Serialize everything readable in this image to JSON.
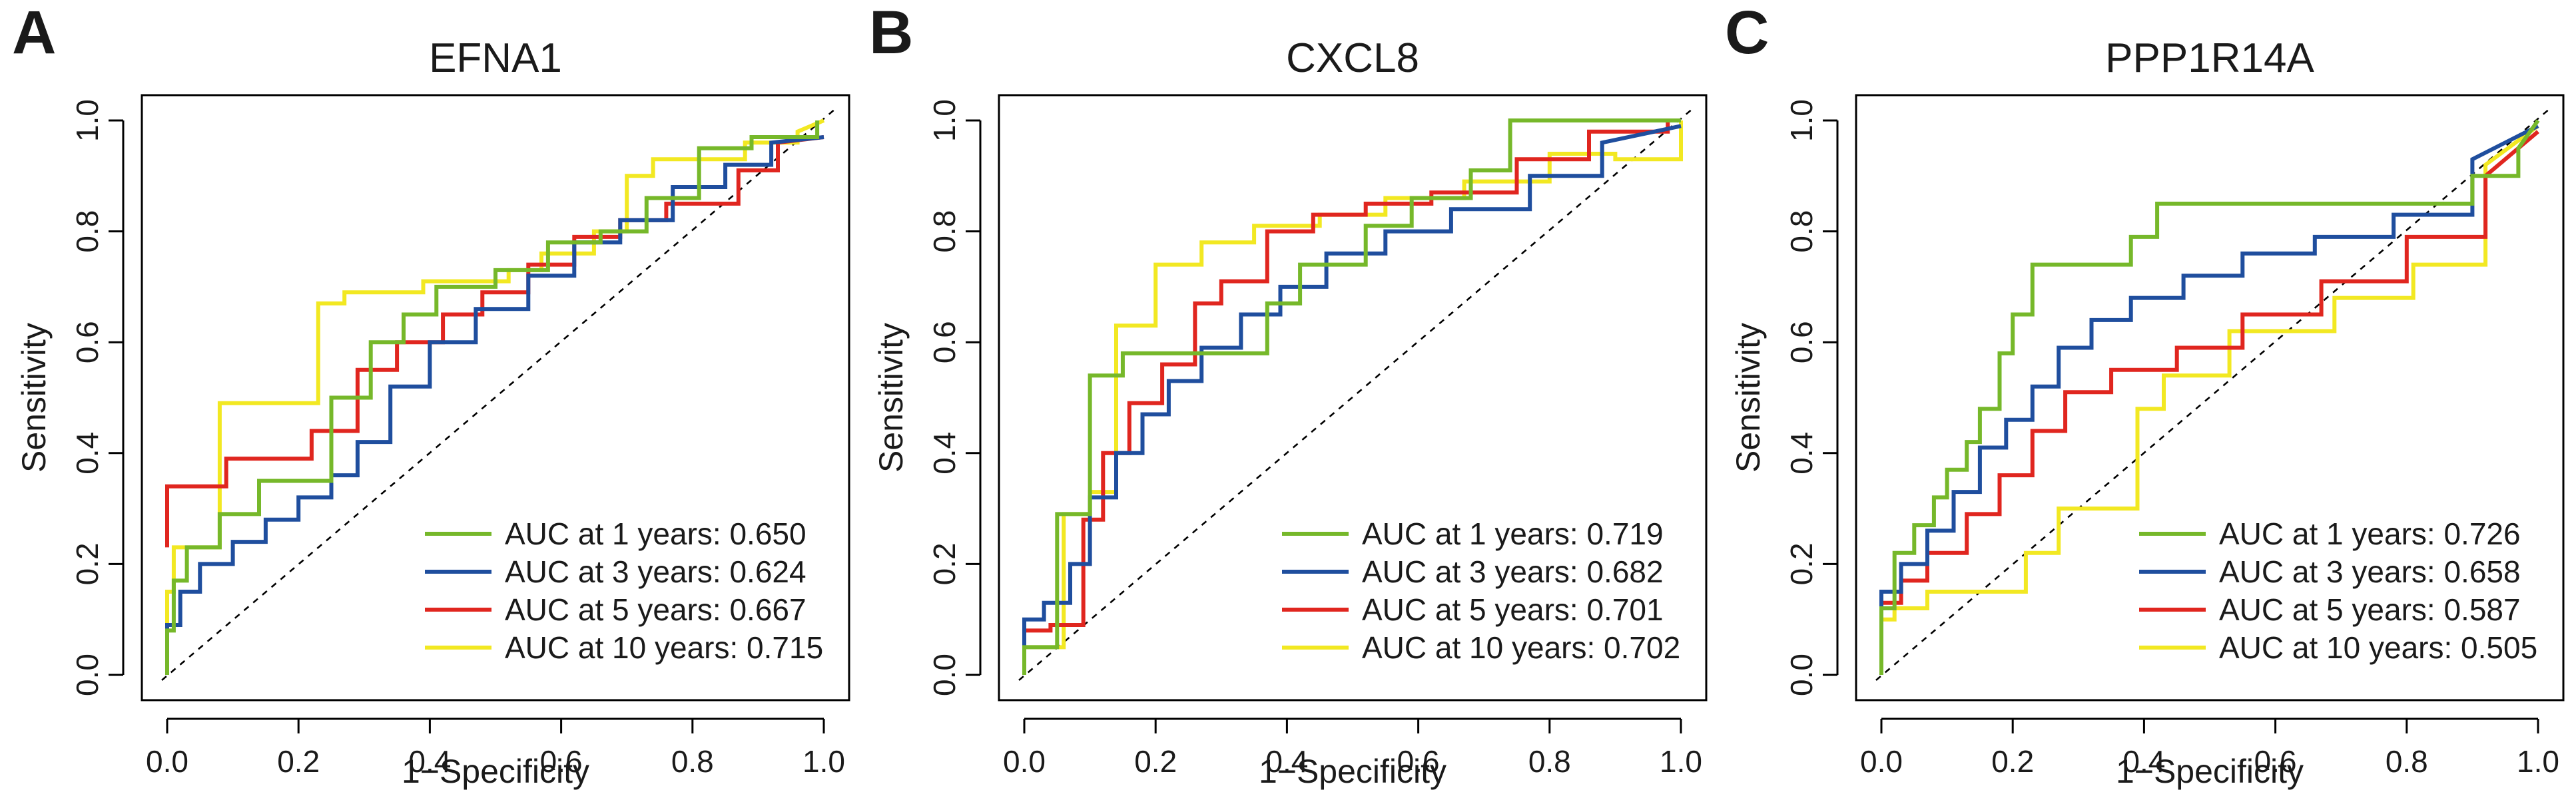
{
  "chart_data": [
    {
      "panel_label": "A",
      "type": "line",
      "title": "EFNA1",
      "xlabel": "1−Specificity",
      "ylabel": "Sensitivity",
      "xlim": [
        0,
        1
      ],
      "ylim": [
        0,
        1
      ],
      "ticks": [
        "0.0",
        "0.2",
        "0.4",
        "0.6",
        "0.8",
        "1.0"
      ],
      "diagonal_reference": true,
      "legend_position": "bottom-right",
      "series": [
        {
          "name": "AUC at 1 years: 0.650",
          "color": "#76b82a",
          "x": [
            0,
            0,
            0.01,
            0.01,
            0.03,
            0.03,
            0.08,
            0.08,
            0.14,
            0.14,
            0.25,
            0.25,
            0.31,
            0.31,
            0.36,
            0.36,
            0.41,
            0.41,
            0.5,
            0.5,
            0.58,
            0.58,
            0.66,
            0.66,
            0.73,
            0.73,
            0.81,
            0.81,
            0.89,
            0.89,
            0.99,
            0.99
          ],
          "y": [
            0,
            0.08,
            0.08,
            0.17,
            0.17,
            0.23,
            0.23,
            0.29,
            0.29,
            0.35,
            0.35,
            0.5,
            0.5,
            0.6,
            0.6,
            0.65,
            0.65,
            0.7,
            0.7,
            0.73,
            0.73,
            0.78,
            0.78,
            0.8,
            0.8,
            0.86,
            0.86,
            0.95,
            0.95,
            0.97,
            0.97,
            1
          ]
        },
        {
          "name": "AUC at 3 years: 0.624",
          "color": "#1f4e9e",
          "x": [
            0,
            0,
            0.02,
            0.02,
            0.05,
            0.05,
            0.1,
            0.1,
            0.15,
            0.15,
            0.2,
            0.2,
            0.25,
            0.25,
            0.29,
            0.29,
            0.34,
            0.34,
            0.4,
            0.4,
            0.47,
            0.47,
            0.55,
            0.55,
            0.62,
            0.62,
            0.69,
            0.69,
            0.77,
            0.77,
            0.85,
            0.85,
            0.92,
            0.92,
            1
          ],
          "y": [
            0,
            0.09,
            0.09,
            0.15,
            0.15,
            0.2,
            0.2,
            0.24,
            0.24,
            0.28,
            0.28,
            0.32,
            0.32,
            0.36,
            0.36,
            0.42,
            0.42,
            0.52,
            0.52,
            0.6,
            0.6,
            0.66,
            0.66,
            0.72,
            0.72,
            0.78,
            0.78,
            0.82,
            0.82,
            0.88,
            0.88,
            0.92,
            0.92,
            0.96,
            0.97
          ]
        },
        {
          "name": "AUC at 5 years: 0.667",
          "color": "#e0261f",
          "x": [
            0,
            0,
            0.09,
            0.09,
            0.22,
            0.22,
            0.29,
            0.29,
            0.35,
            0.35,
            0.42,
            0.42,
            0.48,
            0.48,
            0.55,
            0.55,
            0.62,
            0.62,
            0.69,
            0.69,
            0.76,
            0.76,
            0.87,
            0.87,
            0.93,
            0.93,
            1
          ],
          "y": [
            0.23,
            0.34,
            0.34,
            0.39,
            0.39,
            0.44,
            0.44,
            0.55,
            0.55,
            0.6,
            0.6,
            0.65,
            0.65,
            0.69,
            0.69,
            0.74,
            0.74,
            0.79,
            0.79,
            0.82,
            0.82,
            0.85,
            0.85,
            0.91,
            0.91,
            0.96,
            0.97
          ]
        },
        {
          "name": "AUC at 10 years: 0.715",
          "color": "#f2e822",
          "x": [
            0,
            0,
            0.01,
            0.01,
            0.08,
            0.08,
            0.23,
            0.23,
            0.27,
            0.27,
            0.39,
            0.39,
            0.52,
            0.52,
            0.57,
            0.57,
            0.65,
            0.65,
            0.7,
            0.7,
            0.74,
            0.74,
            0.88,
            0.88,
            0.96,
            0.96,
            1
          ],
          "y": [
            0.07,
            0.15,
            0.15,
            0.23,
            0.23,
            0.49,
            0.49,
            0.67,
            0.67,
            0.69,
            0.69,
            0.71,
            0.71,
            0.73,
            0.73,
            0.76,
            0.76,
            0.8,
            0.8,
            0.9,
            0.9,
            0.93,
            0.93,
            0.96,
            0.96,
            0.98,
            1
          ]
        }
      ]
    },
    {
      "panel_label": "B",
      "type": "line",
      "title": "CXCL8",
      "xlabel": "1−Specificity",
      "ylabel": "Sensitivity",
      "xlim": [
        0,
        1
      ],
      "ylim": [
        0,
        1
      ],
      "ticks": [
        "0.0",
        "0.2",
        "0.4",
        "0.6",
        "0.8",
        "1.0"
      ],
      "diagonal_reference": true,
      "legend_position": "bottom-right",
      "series": [
        {
          "name": "AUC at 1 years: 0.719",
          "color": "#76b82a",
          "x": [
            0,
            0,
            0.05,
            0.05,
            0.1,
            0.1,
            0.15,
            0.15,
            0.22,
            0.22,
            0.3,
            0.3,
            0.37,
            0.37,
            0.42,
            0.42,
            0.52,
            0.52,
            0.59,
            0.59,
            0.68,
            0.68,
            0.74,
            0.74,
            1
          ],
          "y": [
            0,
            0.05,
            0.05,
            0.29,
            0.29,
            0.54,
            0.54,
            0.58,
            0.58,
            0.58,
            0.58,
            0.58,
            0.58,
            0.67,
            0.67,
            0.74,
            0.74,
            0.81,
            0.81,
            0.86,
            0.86,
            0.91,
            0.91,
            1,
            1
          ]
        },
        {
          "name": "AUC at 3 years: 0.682",
          "color": "#1f4e9e",
          "x": [
            0,
            0,
            0.03,
            0.03,
            0.07,
            0.07,
            0.1,
            0.1,
            0.14,
            0.14,
            0.18,
            0.18,
            0.22,
            0.22,
            0.27,
            0.27,
            0.33,
            0.33,
            0.39,
            0.39,
            0.46,
            0.46,
            0.55,
            0.55,
            0.65,
            0.65,
            0.77,
            0.77,
            0.88,
            0.88,
            1
          ],
          "y": [
            0.05,
            0.1,
            0.1,
            0.13,
            0.13,
            0.2,
            0.2,
            0.32,
            0.32,
            0.4,
            0.4,
            0.47,
            0.47,
            0.53,
            0.53,
            0.59,
            0.59,
            0.65,
            0.65,
            0.7,
            0.7,
            0.76,
            0.76,
            0.8,
            0.8,
            0.84,
            0.84,
            0.9,
            0.9,
            0.96,
            0.99
          ]
        },
        {
          "name": "AUC at 5 years: 0.701",
          "color": "#e0261f",
          "x": [
            0,
            0,
            0.04,
            0.04,
            0.09,
            0.09,
            0.12,
            0.12,
            0.16,
            0.16,
            0.21,
            0.21,
            0.26,
            0.26,
            0.3,
            0.3,
            0.37,
            0.37,
            0.44,
            0.44,
            0.52,
            0.52,
            0.62,
            0.62,
            0.75,
            0.75,
            0.86,
            0.86,
            0.98,
            0.98,
            1
          ],
          "y": [
            0.04,
            0.08,
            0.08,
            0.09,
            0.09,
            0.28,
            0.28,
            0.4,
            0.4,
            0.49,
            0.49,
            0.56,
            0.56,
            0.67,
            0.67,
            0.71,
            0.71,
            0.8,
            0.8,
            0.83,
            0.83,
            0.85,
            0.85,
            0.87,
            0.87,
            0.93,
            0.93,
            0.98,
            0.98,
            1,
            1
          ]
        },
        {
          "name": "AUC at 10 years: 0.702",
          "color": "#f2e822",
          "x": [
            0,
            0,
            0.06,
            0.06,
            0.1,
            0.1,
            0.14,
            0.14,
            0.2,
            0.2,
            0.27,
            0.27,
            0.35,
            0.35,
            0.45,
            0.45,
            0.55,
            0.55,
            0.67,
            0.67,
            0.8,
            0.8,
            0.9,
            0.9,
            1,
            1
          ],
          "y": [
            0,
            0.05,
            0.05,
            0.29,
            0.29,
            0.33,
            0.33,
            0.63,
            0.63,
            0.74,
            0.74,
            0.78,
            0.78,
            0.81,
            0.81,
            0.83,
            0.83,
            0.86,
            0.86,
            0.89,
            0.89,
            0.94,
            0.94,
            0.93,
            0.93,
            1
          ]
        }
      ]
    },
    {
      "panel_label": "C",
      "type": "line",
      "title": "PPP1R14A",
      "xlabel": "1−Specificity",
      "ylabel": "Sensitivity",
      "xlim": [
        0,
        1
      ],
      "ylim": [
        0,
        1
      ],
      "ticks": [
        "0.0",
        "0.2",
        "0.4",
        "0.6",
        "0.8",
        "1.0"
      ],
      "diagonal_reference": true,
      "legend_position": "bottom-right",
      "series": [
        {
          "name": "AUC at 1 years: 0.726",
          "color": "#76b82a",
          "x": [
            0,
            0,
            0.02,
            0.02,
            0.05,
            0.05,
            0.08,
            0.08,
            0.1,
            0.1,
            0.13,
            0.13,
            0.15,
            0.15,
            0.18,
            0.18,
            0.2,
            0.2,
            0.23,
            0.23,
            0.26,
            0.26,
            0.38,
            0.38,
            0.42,
            0.42,
            0.9,
            0.9,
            0.97,
            0.97,
            1
          ],
          "y": [
            0,
            0.12,
            0.12,
            0.22,
            0.22,
            0.27,
            0.27,
            0.32,
            0.32,
            0.37,
            0.37,
            0.42,
            0.42,
            0.48,
            0.48,
            0.58,
            0.58,
            0.65,
            0.65,
            0.74,
            0.74,
            0.74,
            0.74,
            0.79,
            0.79,
            0.85,
            0.85,
            0.9,
            0.9,
            0.95,
            1
          ]
        },
        {
          "name": "AUC at 3 years: 0.658",
          "color": "#1f4e9e",
          "x": [
            0,
            0,
            0.03,
            0.03,
            0.07,
            0.07,
            0.11,
            0.11,
            0.15,
            0.15,
            0.19,
            0.19,
            0.23,
            0.23,
            0.27,
            0.27,
            0.32,
            0.32,
            0.38,
            0.38,
            0.46,
            0.46,
            0.55,
            0.55,
            0.66,
            0.66,
            0.78,
            0.78,
            0.9,
            0.9,
            1
          ],
          "y": [
            0.08,
            0.15,
            0.15,
            0.2,
            0.2,
            0.26,
            0.26,
            0.33,
            0.33,
            0.41,
            0.41,
            0.46,
            0.46,
            0.52,
            0.52,
            0.59,
            0.59,
            0.64,
            0.64,
            0.68,
            0.68,
            0.72,
            0.72,
            0.76,
            0.76,
            0.79,
            0.79,
            0.83,
            0.83,
            0.93,
            0.99
          ]
        },
        {
          "name": "AUC at 5 years: 0.587",
          "color": "#e0261f",
          "x": [
            0,
            0,
            0.03,
            0.03,
            0.07,
            0.07,
            0.13,
            0.13,
            0.18,
            0.18,
            0.23,
            0.23,
            0.28,
            0.28,
            0.35,
            0.35,
            0.45,
            0.45,
            0.55,
            0.55,
            0.67,
            0.67,
            0.8,
            0.8,
            0.92,
            0.92,
            1
          ],
          "y": [
            0.08,
            0.13,
            0.13,
            0.17,
            0.17,
            0.22,
            0.22,
            0.29,
            0.29,
            0.36,
            0.36,
            0.44,
            0.44,
            0.51,
            0.51,
            0.55,
            0.55,
            0.59,
            0.59,
            0.65,
            0.65,
            0.71,
            0.71,
            0.79,
            0.79,
            0.9,
            0.98
          ]
        },
        {
          "name": "AUC at 10 years: 0.505",
          "color": "#f2e822",
          "x": [
            0,
            0,
            0.02,
            0.02,
            0.07,
            0.07,
            0.22,
            0.22,
            0.27,
            0.27,
            0.39,
            0.39,
            0.43,
            0.43,
            0.53,
            0.53,
            0.69,
            0.69,
            0.81,
            0.81,
            0.92,
            0.92,
            1
          ],
          "y": [
            0,
            0.1,
            0.1,
            0.12,
            0.12,
            0.15,
            0.15,
            0.22,
            0.22,
            0.3,
            0.3,
            0.48,
            0.48,
            0.54,
            0.54,
            0.62,
            0.62,
            0.68,
            0.68,
            0.74,
            0.74,
            0.92,
            0.99
          ]
        }
      ]
    }
  ]
}
